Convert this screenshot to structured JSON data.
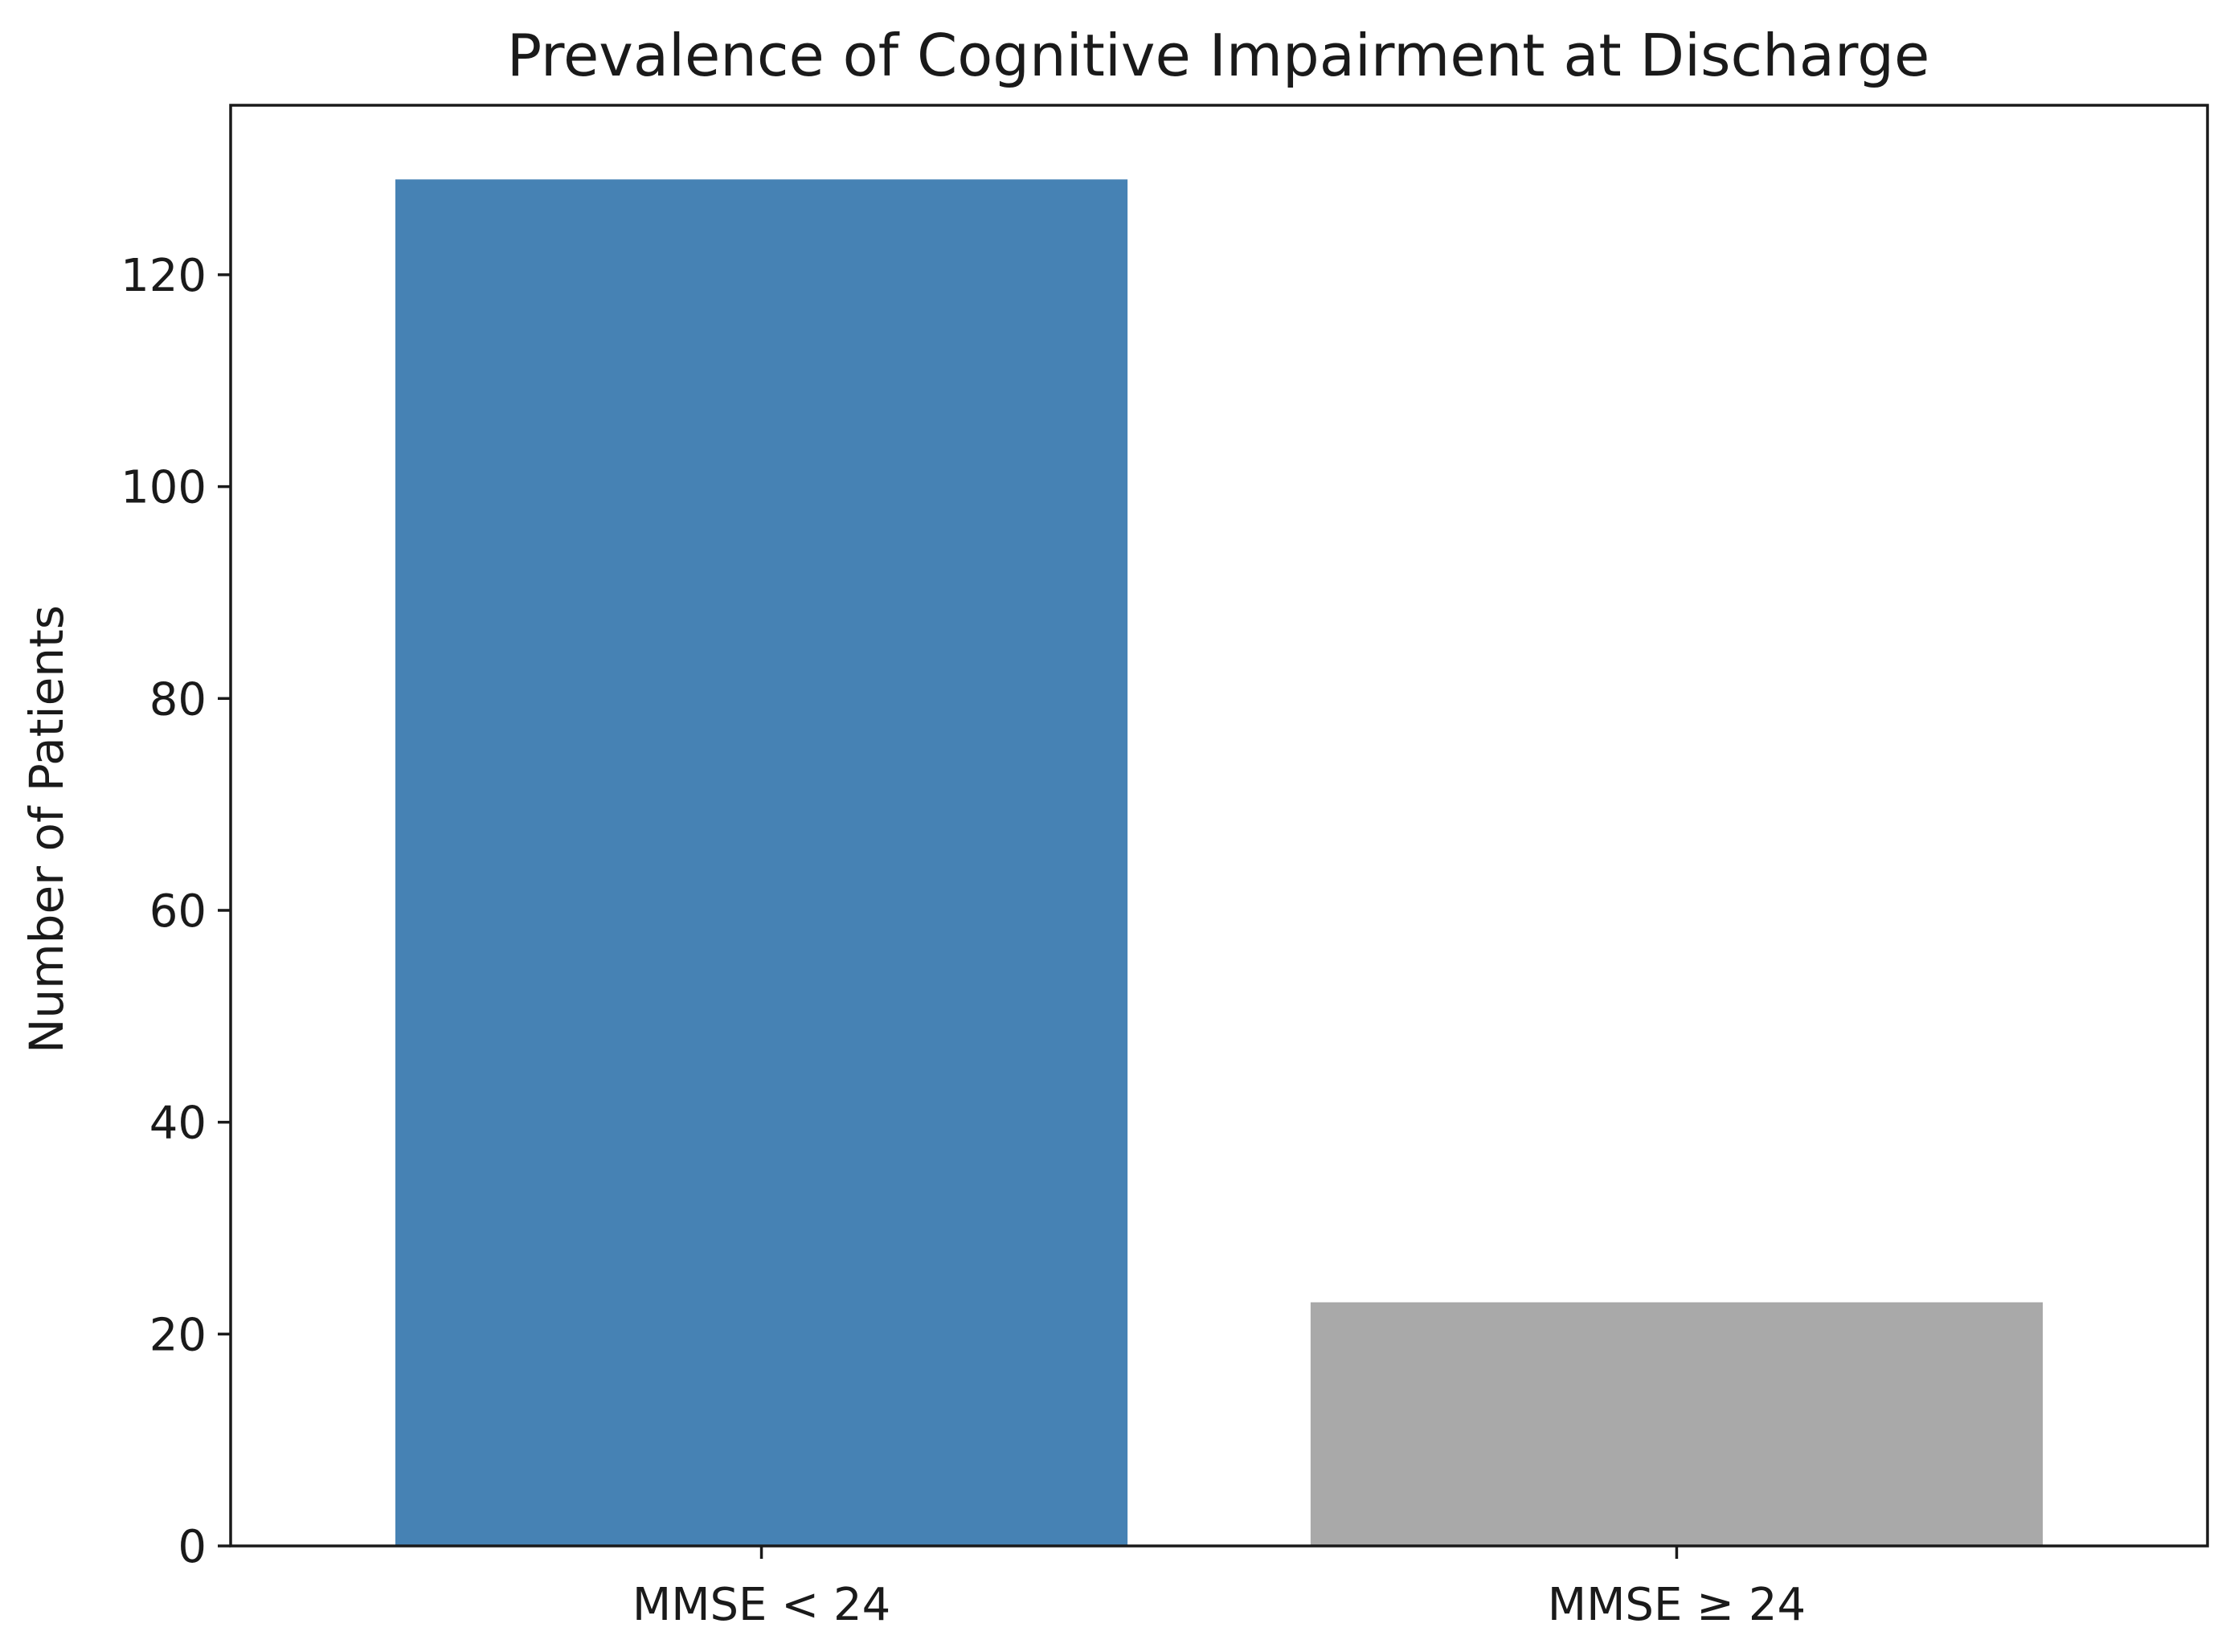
{
  "chart_data": {
    "type": "bar",
    "title": "Prevalence of Cognitive Impairment at Discharge",
    "xlabel": "",
    "ylabel": "Number of Patients",
    "categories": [
      "MMSE < 24",
      "MMSE ≥ 24"
    ],
    "values": [
      129,
      23
    ],
    "colors": [
      "#4682b4",
      "#a9a9a9"
    ],
    "ylim": [
      0,
      136
    ],
    "yticks": [
      0,
      20,
      40,
      60,
      80,
      100,
      120
    ],
    "grid": false,
    "legend": "none"
  }
}
